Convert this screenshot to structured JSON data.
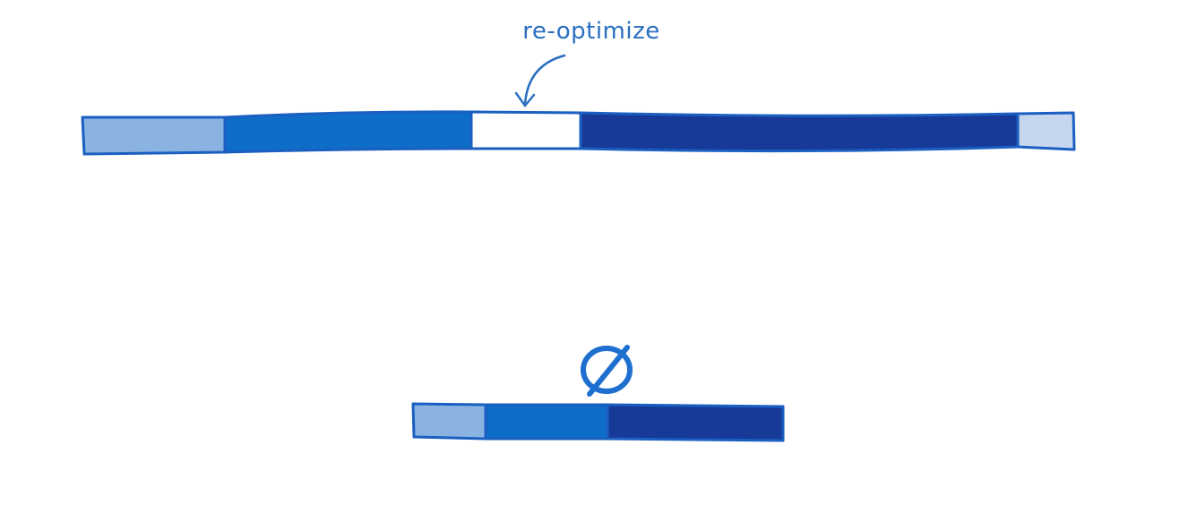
{
  "annotation": {
    "label": "re-optimize",
    "arrow": "curved-arrow-down"
  },
  "colors": {
    "outline": "#1a5fc1",
    "light_blue": "#8ab3e2",
    "mid_blue": "#0e6dc6",
    "dark_blue": "#173a99",
    "pale_blue": "#c7d6ef",
    "gap": "#ffffff",
    "symbol": "#1e6fcf"
  },
  "top_bar": {
    "segments": [
      "light",
      "mid",
      "gap",
      "dark",
      "pale"
    ]
  },
  "bottom_bar": {
    "segments": [
      "light",
      "mid",
      "dark"
    ],
    "symbol": "empty-set-icon"
  }
}
